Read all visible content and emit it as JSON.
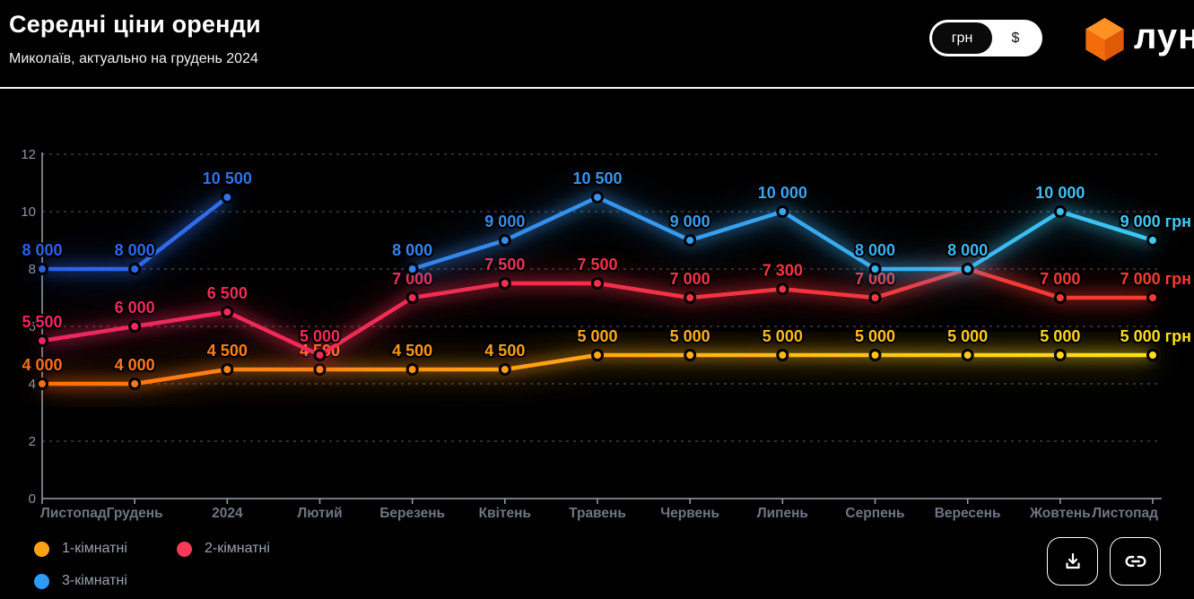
{
  "header": {
    "title": "Середні ціни оренди",
    "subtitle": "Миколаїв, актуально на грудень 2024"
  },
  "currency_toggle": {
    "options": [
      "грн",
      "$"
    ],
    "selected": "грн"
  },
  "logo": {
    "text": "лун",
    "cube_colors": {
      "top": "#ff9125",
      "left": "#f36c0b",
      "right": "#e05a06"
    }
  },
  "icons": {
    "download": "download-icon",
    "copy_link": "link-icon"
  },
  "colors": {
    "background": "#000000",
    "accent_white": "#ffffff"
  },
  "chart_data": {
    "type": "line",
    "title": "Середні ціни оренди",
    "unit": "грн",
    "categories": [
      "Листопад",
      "Грудень",
      "2024",
      "Лютий",
      "Березень",
      "Квітень",
      "Травень",
      "Червень",
      "Липень",
      "Серпень",
      "Вересень",
      "Жовтень",
      "Листопад"
    ],
    "y_ticks": [
      0,
      2,
      4,
      6,
      8,
      10,
      12
    ],
    "ylim": [
      0,
      12000
    ],
    "grid": true,
    "legend_position": "bottom-left",
    "series": [
      {
        "name": "1-кімнатні",
        "color_start": "#ff6f12",
        "color_end": "#ffdf1b",
        "legend_color": "#ffa312",
        "values": [
          4000,
          4000,
          4500,
          4500,
          4500,
          4500,
          5000,
          5000,
          5000,
          5000,
          5000,
          5000,
          5000
        ],
        "labels": [
          "4 000",
          "4 000",
          "4 500",
          "4 500",
          "4 500",
          "4 500",
          "5 000",
          "5 000",
          "5 000",
          "5 000",
          "5 000",
          "5 000",
          "5 000 грн"
        ]
      },
      {
        "name": "2-кімнатні",
        "color_start": "#f02562",
        "color_end": "#f63b30",
        "legend_color": "#f93b57",
        "values": [
          5500,
          6000,
          6500,
          5000,
          7000,
          7500,
          7500,
          7000,
          7300,
          7000,
          8000,
          7000,
          7000
        ],
        "labels": [
          "5 500",
          "6 000",
          "6 500",
          "5 000",
          "7 000",
          "7 500",
          "7 500",
          "7 000",
          "7 300",
          "7 000",
          "",
          "7 000",
          "7 000 грн"
        ]
      },
      {
        "name": "3-кімнатні",
        "color_start": "#2d5fe8",
        "color_end": "#3ec8f2",
        "legend_color": "#2f9cf4",
        "values": [
          8000,
          8000,
          10500,
          null,
          8000,
          9000,
          10500,
          9000,
          10000,
          8000,
          8000,
          10000,
          9000
        ],
        "labels": [
          "8 000",
          "8 000",
          "10 500",
          "",
          "8 000",
          "9 000",
          "10 500",
          "9 000",
          "10 000",
          "8 000",
          "8 000",
          "10 000",
          "9 000 грн"
        ]
      }
    ]
  }
}
